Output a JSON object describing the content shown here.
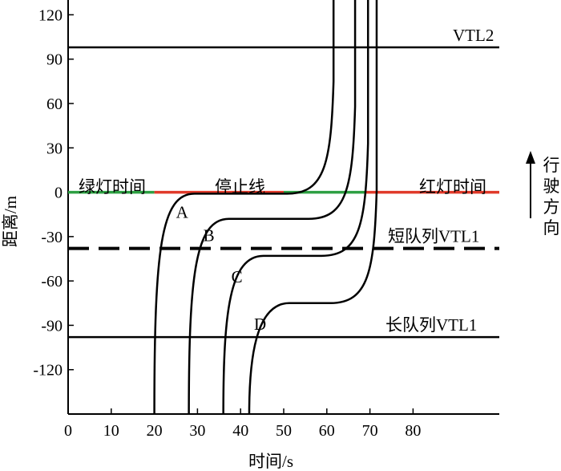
{
  "chart_data": {
    "type": "line",
    "title": "",
    "xlabel": "时间/s",
    "ylabel": "距离/m",
    "xlim": [
      0,
      100
    ],
    "ylim": [
      -150,
      130
    ],
    "x_ticks": [
      0,
      10,
      20,
      30,
      40,
      50,
      60,
      70,
      80
    ],
    "y_ticks": [
      120,
      90,
      60,
      30,
      0,
      -30,
      -60,
      -90,
      -120
    ],
    "grid": false,
    "reference_lines": [
      {
        "label": "VTL2",
        "y": 98,
        "style": "solid"
      },
      {
        "label": "短队列VTL1",
        "y": -38,
        "style": "dashed"
      },
      {
        "label": "长队列VTL1",
        "y": -98,
        "style": "solid"
      }
    ],
    "signal_line": {
      "y": 0,
      "segments": [
        {
          "x0": 0,
          "x1": 20,
          "color": "#2ea043"
        },
        {
          "x0": 20,
          "x1": 50,
          "color": "#e03a2a"
        },
        {
          "x0": 50,
          "x1": 69,
          "color": "#2ea043"
        },
        {
          "x0": 69,
          "x1": 100,
          "color": "#e03a2a"
        }
      ]
    },
    "annotations": {
      "green_time": "绿灯时间",
      "stop_line": "停止线",
      "red_time": "红灯时间",
      "direction": "行驶方向"
    },
    "series": [
      {
        "name": "A",
        "stop_y": -1,
        "approach_x": 20,
        "start_x": 28,
        "exit_x": 61
      },
      {
        "name": "B",
        "stop_y": -18,
        "approach_x": 28,
        "start_x": 36,
        "exit_x": 66
      },
      {
        "name": "C",
        "stop_y": -43,
        "approach_x": 36,
        "start_x": 46,
        "exit_x": 69
      },
      {
        "name": "D",
        "stop_y": -75,
        "approach_x": 42,
        "start_x": 52,
        "exit_x": 71
      }
    ]
  }
}
